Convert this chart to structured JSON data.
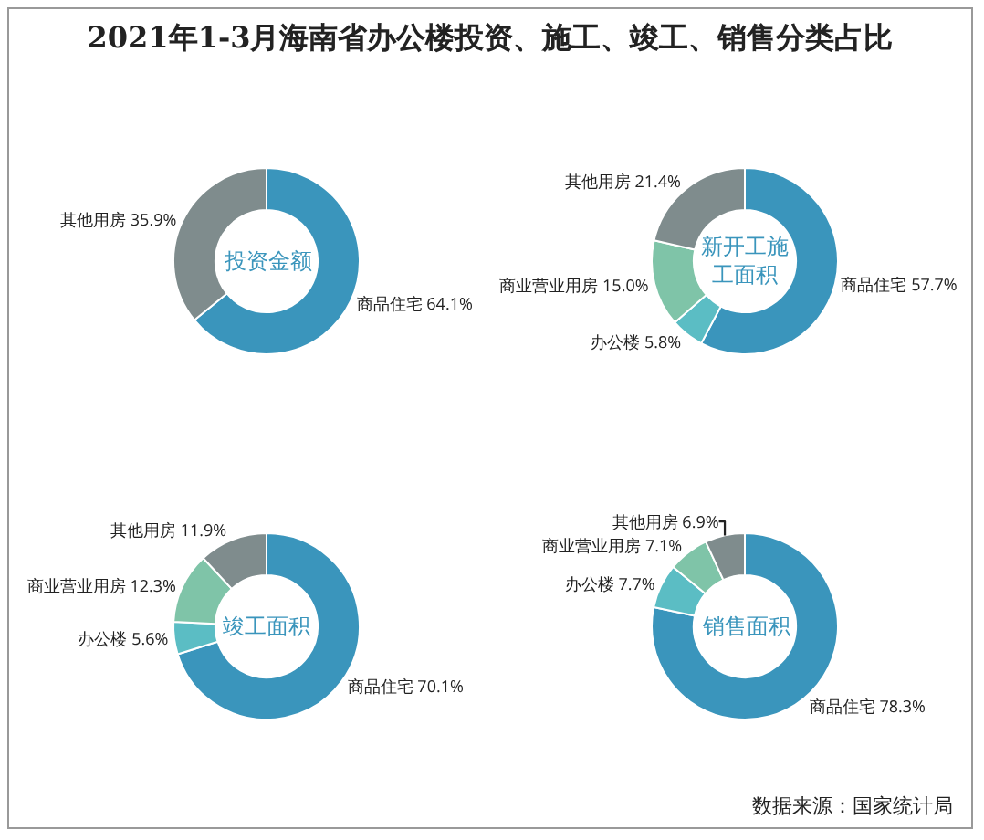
{
  "chart_data": [
    {
      "type": "donut",
      "title": "投资金额",
      "annotations": [
        "2021年1-3月海南省办公楼投资、施工、竣工、销售分类占比"
      ],
      "categories": [
        "商品住宅",
        "其他用房"
      ],
      "values": [
        64.1,
        35.9
      ],
      "value_labels": [
        "64.1%",
        "35.9%"
      ],
      "colors": [
        "#3a95bc",
        "#7f8c8d"
      ],
      "legend": false
    },
    {
      "type": "donut",
      "title": "新开工施工面积",
      "categories": [
        "商品住宅",
        "办公楼",
        "商业营业用房",
        "其他用房"
      ],
      "values": [
        57.7,
        5.8,
        15.0,
        21.4
      ],
      "value_labels": [
        "57.7%",
        "5.8%",
        "15.0%",
        "21.4%"
      ],
      "colors": [
        "#3a95bc",
        "#5bbdc4",
        "#7fc4a8",
        "#7f8c8d"
      ],
      "legend": false
    },
    {
      "type": "donut",
      "title": "竣工面积",
      "categories": [
        "商品住宅",
        "办公楼",
        "商业营业用房",
        "其他用房"
      ],
      "values": [
        70.1,
        5.6,
        12.3,
        11.9
      ],
      "value_labels": [
        "70.1%",
        "5.6%",
        "12.3%",
        "11.9%"
      ],
      "colors": [
        "#3a95bc",
        "#5bbdc4",
        "#7fc4a8",
        "#7f8c8d"
      ],
      "legend": false
    },
    {
      "type": "donut",
      "title": "销售面积",
      "annotations": [
        "数据来源：国家统计局"
      ],
      "categories": [
        "商品住宅",
        "办公楼",
        "商业营业用房",
        "其他用房"
      ],
      "values": [
        78.3,
        7.7,
        7.1,
        6.9
      ],
      "value_labels": [
        "78.3%",
        "7.7%",
        "7.1%",
        "6.9%"
      ],
      "colors": [
        "#3a95bc",
        "#5bbdc4",
        "#7fc4a8",
        "#7f8c8d"
      ],
      "legend": false
    }
  ]
}
